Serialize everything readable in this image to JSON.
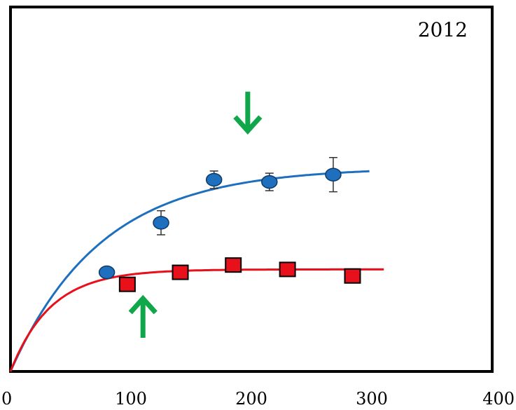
{
  "chart_data": {
    "type": "scatter",
    "panel_label": "2012",
    "xlim": [
      0,
      400
    ],
    "ylim": [
      0,
      1
    ],
    "x_ticks": [
      0,
      100,
      200,
      300,
      400
    ],
    "y_ticks": [],
    "grid": false,
    "legend": "none",
    "series": [
      {
        "marker": "circle",
        "color": "#1f6fbf",
        "points": [
          {
            "x": 80,
            "y": 0.272,
            "err": 0.01
          },
          {
            "x": 125,
            "y": 0.408,
            "err": 0.033
          },
          {
            "x": 169,
            "y": 0.526,
            "err": 0.024
          },
          {
            "x": 215,
            "y": 0.52,
            "err": 0.024
          },
          {
            "x": 268,
            "y": 0.54,
            "err": 0.047
          }
        ],
        "fit": {
          "asymptote": 0.56,
          "rate": 0.0133,
          "x_end": 298
        }
      },
      {
        "marker": "square",
        "color": "#e8101a",
        "points": [
          {
            "x": 97,
            "y": 0.239,
            "err": 0.008
          },
          {
            "x": 141,
            "y": 0.272,
            "err": 0.012
          },
          {
            "x": 185,
            "y": 0.292,
            "err": 0.01
          },
          {
            "x": 230,
            "y": 0.28,
            "err": 0.016
          },
          {
            "x": 284,
            "y": 0.262,
            "err": 0.006
          }
        ],
        "fit": {
          "asymptote": 0.28,
          "rate": 0.03,
          "x_end": 310
        }
      }
    ],
    "annotations": [
      {
        "type": "arrow-down",
        "x": 197,
        "y": 0.66,
        "color": "#10a64a"
      },
      {
        "type": "arrow-up",
        "x": 110,
        "y": 0.2,
        "color": "#10a64a"
      }
    ]
  }
}
